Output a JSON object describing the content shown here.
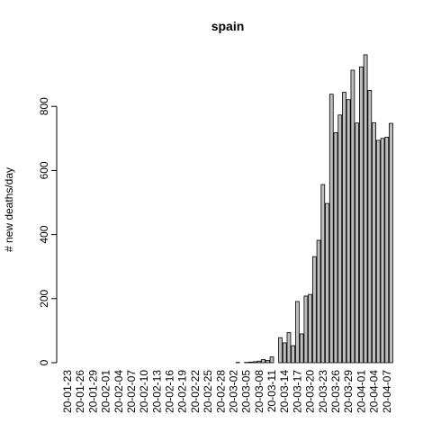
{
  "chart_data": {
    "type": "bar",
    "title": "spain",
    "y_label": "# new deaths/day",
    "categories": [
      "20-01-23",
      null,
      null,
      "20-01-26",
      null,
      null,
      "20-01-29",
      null,
      null,
      "20-02-01",
      null,
      null,
      "20-02-04",
      null,
      null,
      "20-02-07",
      null,
      null,
      "20-02-10",
      null,
      null,
      "20-02-13",
      null,
      null,
      "20-02-16",
      null,
      null,
      "20-02-19",
      null,
      null,
      "20-02-22",
      null,
      null,
      "20-02-25",
      null,
      null,
      "20-02-28",
      null,
      null,
      "20-03-02",
      null,
      null,
      "20-03-05",
      null,
      null,
      "20-03-08",
      null,
      null,
      "20-03-11",
      null,
      null,
      "20-03-14",
      null,
      null,
      "20-03-17",
      null,
      null,
      "20-03-20",
      null,
      null,
      "20-03-23",
      null,
      null,
      "20-03-26",
      null,
      null,
      "20-03-29",
      null,
      null,
      "20-04-01",
      null,
      null,
      "20-04-04",
      null,
      null,
      "20-04-07",
      null
    ],
    "values": [
      0,
      0,
      0,
      0,
      0,
      0,
      0,
      0,
      0,
      0,
      0,
      0,
      0,
      0,
      0,
      0,
      0,
      0,
      0,
      0,
      0,
      0,
      0,
      0,
      0,
      0,
      0,
      0,
      0,
      0,
      0,
      0,
      0,
      0,
      0,
      0,
      0,
      0,
      0,
      0,
      1,
      0,
      1,
      2,
      3,
      5,
      10,
      7,
      18,
      0,
      78,
      62,
      94,
      53,
      191,
      90,
      208,
      213,
      331,
      382,
      556,
      497,
      838,
      718,
      773,
      844,
      821,
      913,
      748,
      923,
      961,
      850,
      749,
      694,
      700,
      704,
      747
    ],
    "color": "#bebebe",
    "ylim": [
      0,
      1000
    ],
    "yticks": [
      0,
      200,
      400,
      600,
      800
    ]
  }
}
